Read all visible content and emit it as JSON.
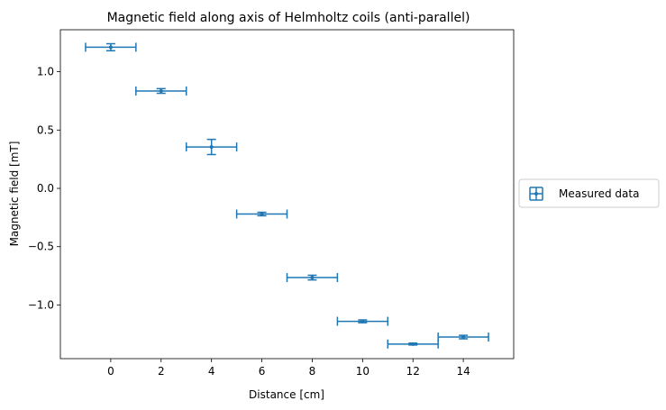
{
  "chart_data": {
    "type": "scatter",
    "title": "Magnetic field along axis of Helmholtz coils (anti-parallel)",
    "xlabel": "Distance [cm]",
    "ylabel": "Magnetic field [mT]",
    "xlim": [
      -2.0,
      16.0
    ],
    "ylim": [
      -1.46,
      1.36
    ],
    "x_ticks": [
      0,
      2,
      4,
      6,
      8,
      10,
      12,
      14
    ],
    "y_ticks": [
      -1.0,
      -0.5,
      0.0,
      0.5,
      1.0
    ],
    "x_tick_labels": [
      "0",
      "2",
      "4",
      "6",
      "8",
      "10",
      "12",
      "14"
    ],
    "y_tick_labels": [
      "−1.0",
      "−0.5",
      "0.0",
      "0.5",
      "1.0"
    ],
    "grid": false,
    "legend_position": "center-right outside",
    "series": [
      {
        "name": "Measured data",
        "color": "#1f77b4",
        "marker": "dot with x and y error bars",
        "points": [
          {
            "x": 0,
            "y": 1.21,
            "xerr": 1,
            "yerr": 0.03
          },
          {
            "x": 2,
            "y": 0.835,
            "xerr": 1,
            "yerr": 0.02
          },
          {
            "x": 4,
            "y": 0.355,
            "xerr": 1,
            "yerr": 0.065
          },
          {
            "x": 6,
            "y": -0.22,
            "xerr": 1,
            "yerr": 0.015
          },
          {
            "x": 8,
            "y": -0.765,
            "xerr": 1,
            "yerr": 0.02
          },
          {
            "x": 10,
            "y": -1.14,
            "xerr": 1,
            "yerr": 0.012
          },
          {
            "x": 12,
            "y": -1.335,
            "xerr": 1,
            "yerr": 0.008
          },
          {
            "x": 14,
            "y": -1.275,
            "xerr": 1,
            "yerr": 0.015
          }
        ]
      }
    ]
  }
}
